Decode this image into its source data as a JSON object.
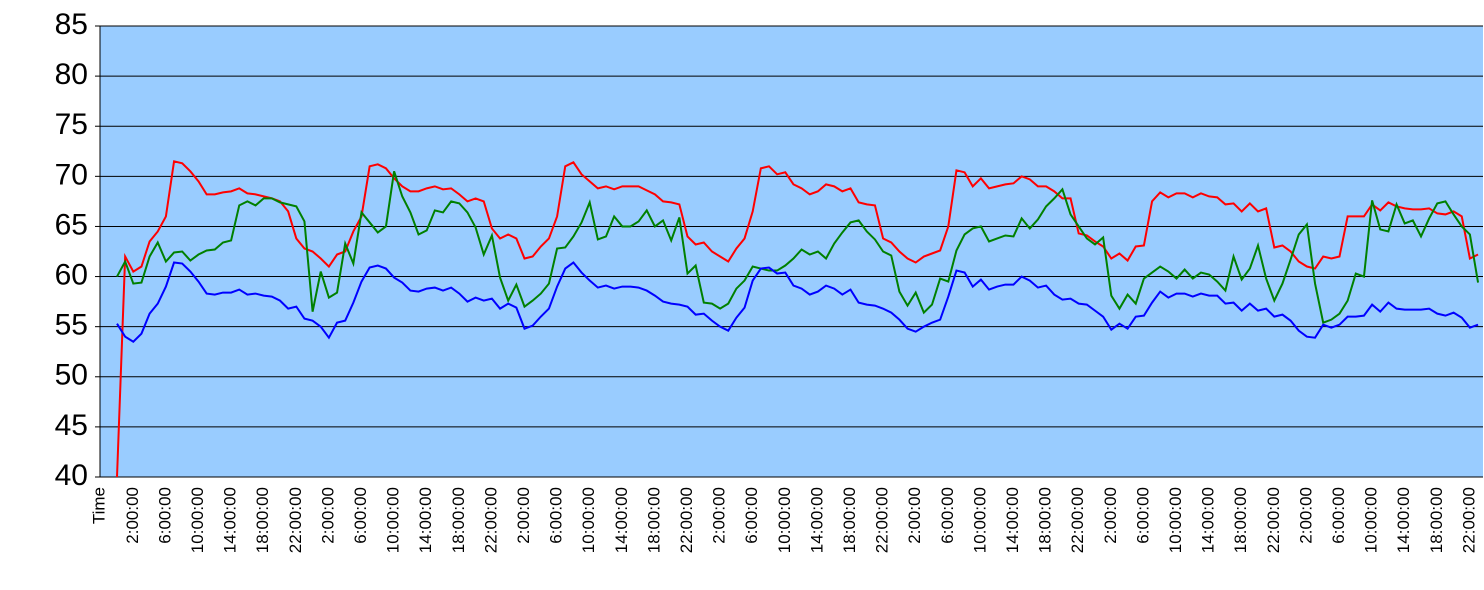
{
  "chart_data": {
    "type": "line",
    "categories": [
      "Time",
      null,
      null,
      "2:00:00",
      null,
      null,
      null,
      "6:00:00",
      null,
      null,
      null,
      "10:00:00",
      null,
      null,
      null,
      "14:00:00",
      null,
      null,
      null,
      "18:00:00",
      null,
      null,
      null,
      "22:00:00",
      null,
      null,
      null,
      "2:00:00",
      null,
      null,
      null,
      "6:00:00",
      null,
      null,
      null,
      "10:00:00",
      null,
      null,
      null,
      "14:00:00",
      null,
      null,
      null,
      "18:00:00",
      null,
      null,
      null,
      "22:00:00",
      null,
      null,
      null,
      "2:00:00",
      null,
      null,
      null,
      "6:00:00",
      null,
      null,
      null,
      "10:00:00",
      null,
      null,
      null,
      "14:00:00",
      null,
      null,
      null,
      "18:00:00",
      null,
      null,
      null,
      "22:00:00",
      null,
      null,
      null,
      "2:00:00",
      null,
      null,
      null,
      "6:00:00",
      null,
      null,
      null,
      "10:00:00",
      null,
      null,
      null,
      "14:00:00",
      null,
      null,
      null,
      "18:00:00",
      null,
      null,
      null,
      "22:00:00",
      null,
      null,
      null,
      "2:00:00",
      null,
      null,
      null,
      "6:00:00",
      null,
      null,
      null,
      "10:00:00",
      null,
      null,
      null,
      "14:00:00",
      null,
      null,
      null,
      "18:00:00",
      null,
      null,
      null,
      "22:00:00",
      null,
      null,
      null,
      "2:00:00",
      null,
      null,
      null,
      "6:00:00",
      null,
      null,
      null,
      "10:00:00",
      null,
      null,
      null,
      "14:00:00",
      null,
      null,
      null,
      "18:00:00",
      null,
      null,
      null,
      "22:00:00",
      null,
      null,
      null,
      "2:00:00",
      null,
      null,
      null,
      "6:00:00",
      null,
      null,
      null,
      "10:00:00",
      null,
      null,
      null,
      "14:00:00",
      null,
      null,
      null,
      "18:00:00",
      null,
      null,
      null,
      "22:00:00",
      null
    ],
    "series": [
      {
        "color": "#ff0000",
        "values": [
          null,
          40,
          62,
          60.5,
          61,
          63.5,
          64.5,
          66,
          71.5,
          71.3,
          70.5,
          69.5,
          68.2,
          68.2,
          68.4,
          68.5,
          68.8,
          68.3,
          68.2,
          68,
          67.8,
          67.5,
          66.5,
          63.8,
          62.8,
          62.5,
          61.8,
          61,
          62.2,
          62.5,
          64.5,
          66,
          71,
          71.2,
          70.8,
          69.8,
          69,
          68.5,
          68.5,
          68.8,
          69,
          68.7,
          68.8,
          68.2,
          67.5,
          67.8,
          67.5,
          64.8,
          63.8,
          64.2,
          63.8,
          61.8,
          62,
          63,
          63.8,
          66,
          71,
          71.4,
          70.2,
          69.5,
          68.8,
          69,
          68.7,
          69,
          69,
          69,
          68.6,
          68.2,
          67.5,
          67.4,
          67.2,
          64,
          63.2,
          63.4,
          62.5,
          62,
          61.5,
          62.8,
          63.8,
          66.5,
          70.8,
          71,
          70.2,
          70.4,
          69.2,
          68.8,
          68.2,
          68.5,
          69.2,
          69,
          68.5,
          68.8,
          67.4,
          67.2,
          67.1,
          63.8,
          63.4,
          62.5,
          61.8,
          61.4,
          62,
          62.3,
          62.6,
          65,
          70.6,
          70.4,
          69,
          69.8,
          68.8,
          69,
          69.2,
          69.3,
          70,
          69.7,
          69,
          69,
          68.5,
          67.8,
          67.8,
          64.3,
          64.1,
          63.5,
          63,
          61.8,
          62.3,
          61.6,
          63,
          63.1,
          67.5,
          68.4,
          67.9,
          68.3,
          68.3,
          67.9,
          68.3,
          68,
          67.9,
          67.2,
          67.3,
          66.5,
          67.3,
          66.5,
          66.8,
          62.9,
          63.1,
          62.5,
          61.5,
          61,
          60.8,
          62,
          61.8,
          62,
          66,
          66,
          66,
          67.2,
          66.6,
          67.4,
          67,
          66.8,
          66.7,
          66.7,
          66.8,
          66.3,
          66.2,
          66.5,
          66,
          61.8,
          62.2
        ]
      },
      {
        "color": "#008000",
        "values": [
          null,
          60,
          61.5,
          59.3,
          59.4,
          62,
          63.4,
          61.5,
          62.4,
          62.5,
          61.6,
          62.2,
          62.6,
          62.7,
          63.4,
          63.6,
          67.1,
          67.5,
          67.1,
          67.8,
          67.8,
          67.4,
          67.2,
          67,
          65.5,
          56.5,
          60.5,
          57.9,
          58.4,
          63.3,
          61.3,
          66.4,
          65.4,
          64.4,
          65,
          70.5,
          68,
          66.4,
          64.2,
          64.6,
          66.6,
          66.4,
          67.5,
          67.3,
          66.4,
          64.9,
          62.2,
          64.1,
          59.9,
          57.6,
          59.2,
          57,
          57.6,
          58.3,
          59.3,
          62.8,
          62.9,
          64,
          65.4,
          67.4,
          63.7,
          64,
          66,
          65,
          65,
          65.5,
          66.6,
          65,
          65.6,
          63.6,
          65.9,
          60.3,
          61.1,
          57.4,
          57.3,
          56.8,
          57.3,
          58.8,
          59.6,
          61,
          60.8,
          60.6,
          60.6,
          61.1,
          61.8,
          62.7,
          62.2,
          62.5,
          61.8,
          63.3,
          64.4,
          65.4,
          65.6,
          64.5,
          63.7,
          62.5,
          62.1,
          58.5,
          57.1,
          58.4,
          56.4,
          57.2,
          59.8,
          59.5,
          62.6,
          64.2,
          64.8,
          65,
          63.5,
          63.8,
          64.1,
          64,
          65.8,
          64.8,
          65.7,
          67,
          67.8,
          68.7,
          66.2,
          65,
          63.8,
          63.2,
          63.9,
          58.1,
          56.8,
          58.2,
          57.3,
          59.8,
          60.4,
          61,
          60.5,
          59.8,
          60.7,
          59.8,
          60.4,
          60.2,
          59.5,
          58.6,
          62,
          59.7,
          60.8,
          63.1,
          59.8,
          57.6,
          59.3,
          61.7,
          64.2,
          65.2,
          59.3,
          55.4,
          55.7,
          56.3,
          57.6,
          60.3,
          60,
          67.6,
          64.7,
          64.5,
          67.2,
          65.3,
          65.6,
          64,
          65.8,
          67.3,
          67.5,
          66.2,
          65,
          64.2,
          59.4
        ]
      },
      {
        "color": "#0000ff",
        "values": [
          null,
          55.3,
          54,
          53.5,
          54.3,
          56.3,
          57.3,
          59,
          61.4,
          61.3,
          60.5,
          59.5,
          58.3,
          58.2,
          58.4,
          58.4,
          58.7,
          58.2,
          58.3,
          58.1,
          58,
          57.6,
          56.8,
          57,
          55.8,
          55.6,
          55,
          53.9,
          55.4,
          55.6,
          57.4,
          59.5,
          60.9,
          61.1,
          60.8,
          59.9,
          59.4,
          58.6,
          58.5,
          58.8,
          58.9,
          58.6,
          58.9,
          58.3,
          57.5,
          57.9,
          57.6,
          57.8,
          56.8,
          57.3,
          56.9,
          54.8,
          55.1,
          56,
          56.8,
          59,
          60.8,
          61.4,
          60.4,
          59.6,
          58.9,
          59.1,
          58.8,
          59,
          59,
          58.9,
          58.6,
          58.1,
          57.5,
          57.3,
          57.2,
          57,
          56.2,
          56.3,
          55.6,
          55,
          54.6,
          55.9,
          56.9,
          59.6,
          60.8,
          60.9,
          60.3,
          60.4,
          59.1,
          58.8,
          58.2,
          58.5,
          59.1,
          58.8,
          58.2,
          58.7,
          57.4,
          57.2,
          57.1,
          56.8,
          56.4,
          55.7,
          54.8,
          54.5,
          55,
          55.4,
          55.7,
          58,
          60.6,
          60.4,
          59,
          59.7,
          58.7,
          59,
          59.2,
          59.2,
          60,
          59.6,
          58.9,
          59.1,
          58.2,
          57.7,
          57.8,
          57.3,
          57.2,
          56.6,
          56,
          54.7,
          55.3,
          54.8,
          56,
          56.1,
          57.4,
          58.5,
          57.9,
          58.3,
          58.3,
          58,
          58.3,
          58.1,
          58.1,
          57.3,
          57.4,
          56.6,
          57.3,
          56.6,
          56.8,
          56,
          56.2,
          55.6,
          54.6,
          54,
          53.9,
          55.2,
          54.9,
          55.2,
          56,
          56,
          56.1,
          57.2,
          56.5,
          57.4,
          56.8,
          56.7,
          56.7,
          56.7,
          56.8,
          56.3,
          56.1,
          56.4,
          55.9,
          54.9,
          55.2
        ]
      }
    ],
    "ylim": [
      40,
      85
    ],
    "yticks": [
      40,
      45,
      50,
      55,
      60,
      65,
      70,
      75,
      80,
      85
    ],
    "grid": true,
    "background": "#99ccff"
  }
}
